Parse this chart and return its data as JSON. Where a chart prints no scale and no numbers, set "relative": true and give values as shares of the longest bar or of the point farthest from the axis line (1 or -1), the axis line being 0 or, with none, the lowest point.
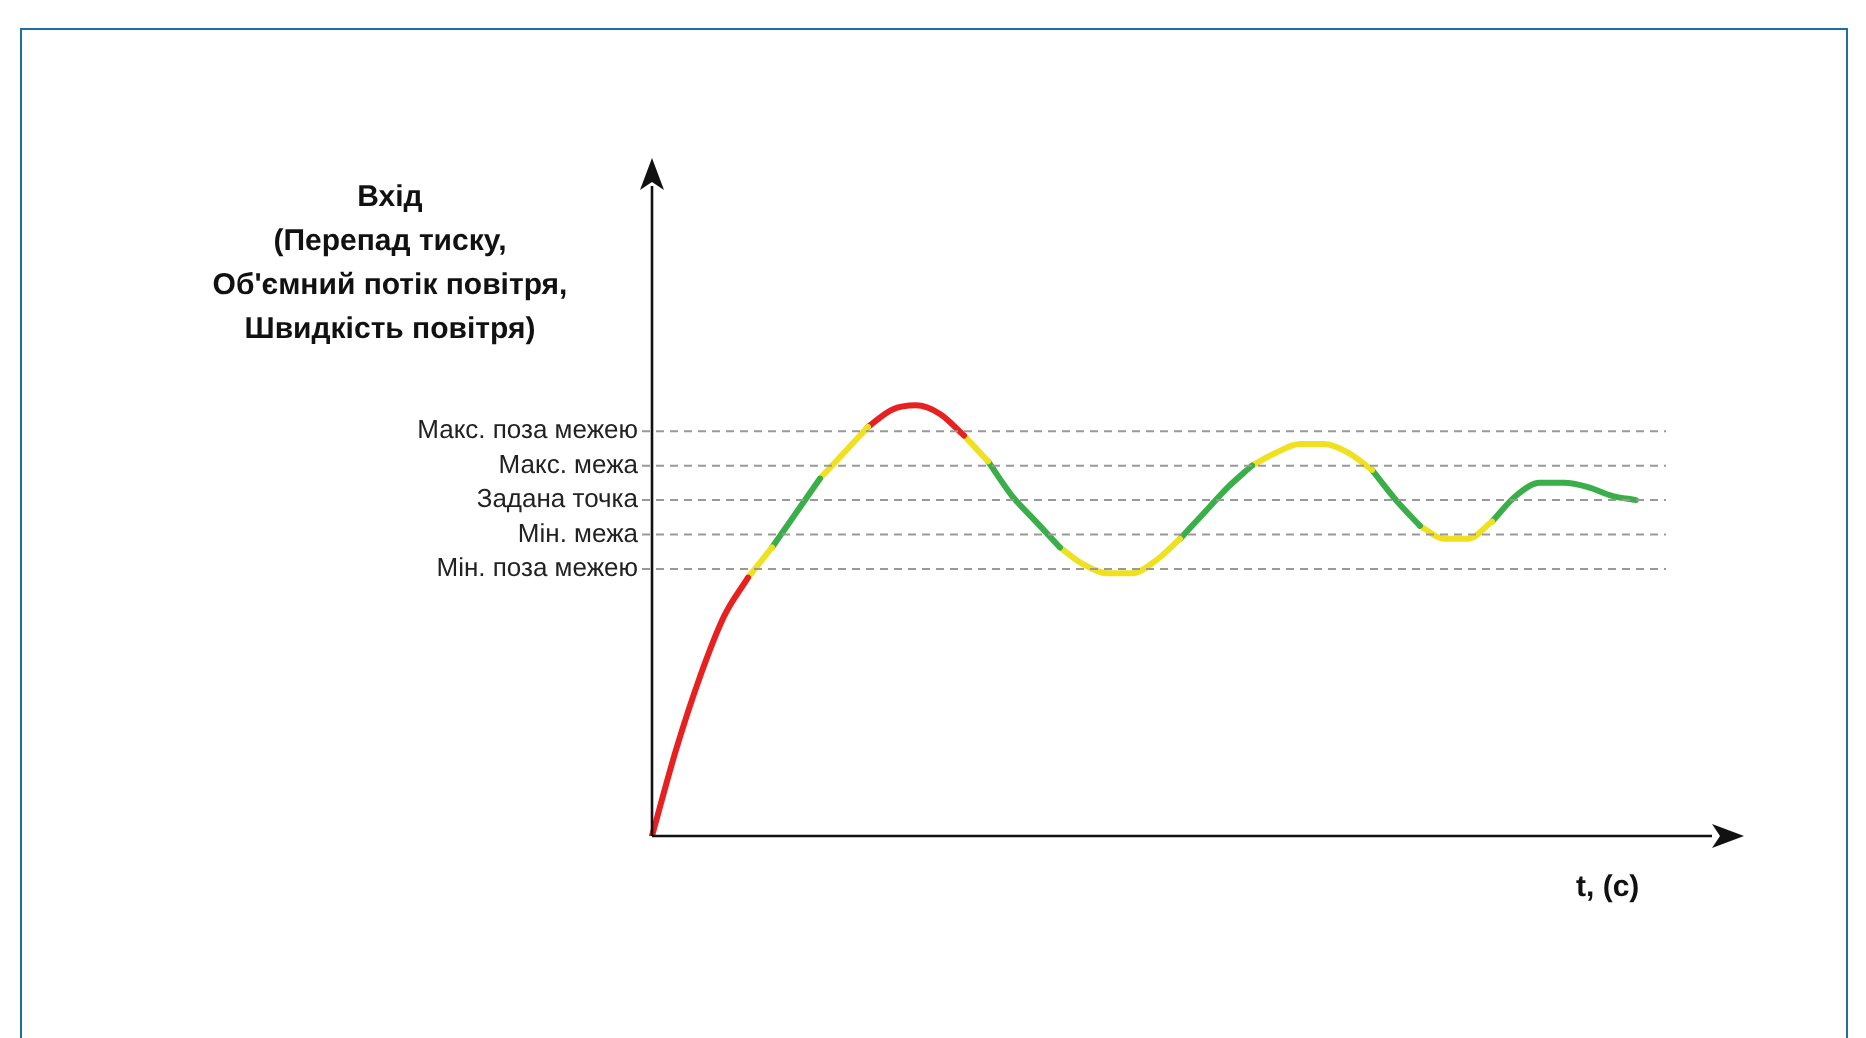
{
  "chart_data": {
    "type": "line",
    "relative": true,
    "marker": "none",
    "line_style": "solid",
    "ylabel": "Вхід\n(Перепад тиску,\nОб'ємний потік повітря,\nШвидкість повітря)",
    "xlabel": "t, (c)",
    "categories": [
      null,
      null,
      null,
      null,
      null,
      null,
      null,
      null,
      null,
      null,
      null,
      null,
      null,
      null,
      null,
      null,
      null,
      null,
      null,
      null,
      null,
      null,
      null,
      null,
      null,
      null,
      null,
      null,
      null,
      null,
      null,
      null,
      null,
      null,
      null,
      null,
      null,
      null,
      null,
      null,
      null,
      null
    ],
    "series": [
      {
        "color": "#e8201f",
        "values": [
          0,
          0.2,
          0.37,
          0.51,
          0.6,
          null,
          null,
          null,
          null,
          null,
          null,
          null,
          null,
          null,
          null,
          null,
          null,
          null,
          null,
          null,
          null,
          null,
          null,
          null,
          null,
          null,
          null,
          null,
          null,
          null,
          null,
          null,
          null,
          null,
          null,
          null,
          null,
          null,
          null,
          null,
          null,
          null
        ]
      },
      {
        "color": "#f0e120",
        "values": [
          null,
          null,
          null,
          null,
          0.6,
          0.67,
          null,
          null,
          null,
          null,
          null,
          null,
          null,
          null,
          null,
          null,
          null,
          null,
          null,
          null,
          null,
          null,
          null,
          null,
          null,
          null,
          null,
          null,
          null,
          null,
          null,
          null,
          null,
          null,
          null,
          null,
          null,
          null,
          null,
          null,
          null,
          null
        ]
      },
      {
        "color": "#3aae48",
        "values": [
          null,
          null,
          null,
          null,
          null,
          0.67,
          0.75,
          0.83,
          null,
          null,
          null,
          null,
          null,
          null,
          null,
          null,
          null,
          null,
          null,
          null,
          null,
          null,
          null,
          null,
          null,
          null,
          null,
          null,
          null,
          null,
          null,
          null,
          null,
          null,
          null,
          null,
          null,
          null,
          null,
          null,
          null,
          null
        ]
      },
      {
        "color": "#f0e120",
        "values": [
          null,
          null,
          null,
          null,
          null,
          null,
          null,
          0.83,
          0.89,
          0.95,
          null,
          null,
          null,
          null,
          null,
          null,
          null,
          null,
          null,
          null,
          null,
          null,
          null,
          null,
          null,
          null,
          null,
          null,
          null,
          null,
          null,
          null,
          null,
          null,
          null,
          null,
          null,
          null,
          null,
          null,
          null,
          null
        ]
      },
      {
        "color": "#e8201f",
        "values": [
          null,
          null,
          null,
          null,
          null,
          null,
          null,
          null,
          null,
          0.95,
          0.99,
          1,
          0.98,
          0.93,
          null,
          null,
          null,
          null,
          null,
          null,
          null,
          null,
          null,
          null,
          null,
          null,
          null,
          null,
          null,
          null,
          null,
          null,
          null,
          null,
          null,
          null,
          null,
          null,
          null,
          null,
          null,
          null
        ]
      },
      {
        "color": "#f0e120",
        "values": [
          null,
          null,
          null,
          null,
          null,
          null,
          null,
          null,
          null,
          null,
          null,
          null,
          null,
          0.93,
          0.87,
          null,
          null,
          null,
          null,
          null,
          null,
          null,
          null,
          null,
          null,
          null,
          null,
          null,
          null,
          null,
          null,
          null,
          null,
          null,
          null,
          null,
          null,
          null,
          null,
          null,
          null,
          null
        ]
      },
      {
        "color": "#3aae48",
        "values": [
          null,
          null,
          null,
          null,
          null,
          null,
          null,
          null,
          null,
          null,
          null,
          null,
          null,
          null,
          0.87,
          0.79,
          0.73,
          0.67,
          null,
          null,
          null,
          null,
          null,
          null,
          null,
          null,
          null,
          null,
          null,
          null,
          null,
          null,
          null,
          null,
          null,
          null,
          null,
          null,
          null,
          null,
          null,
          null
        ]
      },
      {
        "color": "#f0e120",
        "values": [
          null,
          null,
          null,
          null,
          null,
          null,
          null,
          null,
          null,
          null,
          null,
          null,
          null,
          null,
          null,
          null,
          null,
          0.67,
          0.63,
          0.61,
          0.61,
          0.64,
          0.69,
          null,
          null,
          null,
          null,
          null,
          null,
          null,
          null,
          null,
          null,
          null,
          null,
          null,
          null,
          null,
          null,
          null,
          null,
          null
        ]
      },
      {
        "color": "#3aae48",
        "values": [
          null,
          null,
          null,
          null,
          null,
          null,
          null,
          null,
          null,
          null,
          null,
          null,
          null,
          null,
          null,
          null,
          null,
          null,
          null,
          null,
          null,
          null,
          0.69,
          0.75,
          0.81,
          0.86,
          null,
          null,
          null,
          null,
          null,
          null,
          null,
          null,
          null,
          null,
          null,
          null,
          null,
          null,
          null,
          null
        ]
      },
      {
        "color": "#f0e120",
        "values": [
          null,
          null,
          null,
          null,
          null,
          null,
          null,
          null,
          null,
          null,
          null,
          null,
          null,
          null,
          null,
          null,
          null,
          null,
          null,
          null,
          null,
          null,
          null,
          null,
          null,
          0.86,
          0.89,
          0.91,
          0.91,
          0.89,
          0.85,
          null,
          null,
          null,
          null,
          null,
          null,
          null,
          null,
          null,
          null,
          null
        ]
      },
      {
        "color": "#3aae48",
        "values": [
          null,
          null,
          null,
          null,
          null,
          null,
          null,
          null,
          null,
          null,
          null,
          null,
          null,
          null,
          null,
          null,
          null,
          null,
          null,
          null,
          null,
          null,
          null,
          null,
          null,
          null,
          null,
          null,
          null,
          null,
          0.85,
          0.78,
          0.72,
          null,
          null,
          null,
          null,
          null,
          null,
          null,
          null,
          null
        ]
      },
      {
        "color": "#f0e120",
        "values": [
          null,
          null,
          null,
          null,
          null,
          null,
          null,
          null,
          null,
          null,
          null,
          null,
          null,
          null,
          null,
          null,
          null,
          null,
          null,
          null,
          null,
          null,
          null,
          null,
          null,
          null,
          null,
          null,
          null,
          null,
          null,
          null,
          0.72,
          0.69,
          0.69,
          0.73,
          null,
          null,
          null,
          null,
          null,
          null
        ]
      },
      {
        "color": "#3aae48",
        "values": [
          null,
          null,
          null,
          null,
          null,
          null,
          null,
          null,
          null,
          null,
          null,
          null,
          null,
          null,
          null,
          null,
          null,
          null,
          null,
          null,
          null,
          null,
          null,
          null,
          null,
          null,
          null,
          null,
          null,
          null,
          null,
          null,
          null,
          null,
          null,
          0.73,
          0.79,
          0.82,
          0.82,
          0.81,
          0.79,
          0.78
        ]
      }
    ],
    "ref_lines": [
      {
        "axis": "y",
        "value": 0.94,
        "label": "Макс. поза межею",
        "color": "#999999",
        "line_style": "dashed"
      },
      {
        "axis": "y",
        "value": 0.86,
        "label": "Макс. межа",
        "color": "#999999",
        "line_style": "dashed"
      },
      {
        "axis": "y",
        "value": 0.78,
        "label": "Задана точка",
        "color": "#999999",
        "line_style": "dashed"
      },
      {
        "axis": "y",
        "value": 0.7,
        "label": "Мін. межа",
        "color": "#999999",
        "line_style": "dashed"
      },
      {
        "axis": "y",
        "value": 0.62,
        "label": "Мін. поза межею",
        "color": "#999999",
        "line_style": "dashed"
      }
    ]
  }
}
